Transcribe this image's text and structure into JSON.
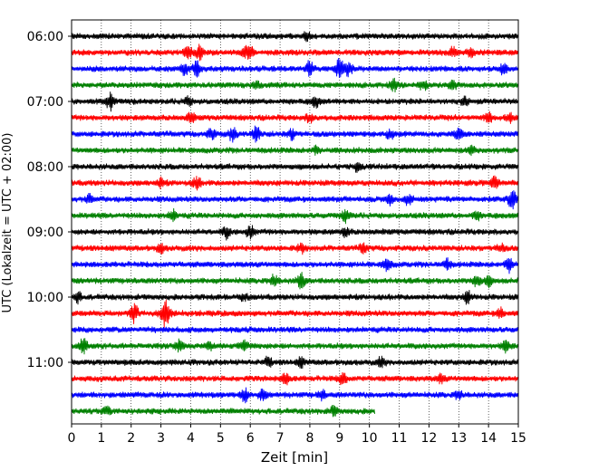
{
  "chart_data": {
    "type": "line",
    "xlabel": "Zeit  [min]",
    "ylabel": "UTC (Lokalzeit = UTC + 02:00)",
    "xlim": [
      0,
      15
    ],
    "x_ticks": [
      0,
      1,
      2,
      3,
      4,
      5,
      6,
      7,
      8,
      9,
      10,
      11,
      12,
      13,
      14,
      15
    ],
    "grid": "vertical dotted",
    "y_ticks": [
      "06:00",
      "07:00",
      "08:00",
      "09:00",
      "10:00",
      "11:00"
    ],
    "trace_interval_minutes": 15,
    "color_cycle": [
      "#000000",
      "#ff0000",
      "#0000ff",
      "#008000"
    ],
    "traces": [
      {
        "start": "06:00",
        "color": "#000000",
        "end_min": 15,
        "events": [
          [
            7.9,
            1.2
          ]
        ]
      },
      {
        "start": "06:15",
        "color": "#ff0000",
        "end_min": 15,
        "events": [
          [
            3.9,
            2.2
          ],
          [
            4.3,
            2.0
          ],
          [
            5.8,
            1.3
          ],
          [
            6.0,
            1.6
          ],
          [
            12.8,
            1.3
          ],
          [
            13.4,
            1.4
          ]
        ]
      },
      {
        "start": "06:30",
        "color": "#0000ff",
        "end_min": 15,
        "events": [
          [
            3.8,
            2.0
          ],
          [
            4.2,
            2.2
          ],
          [
            8.0,
            2.2
          ],
          [
            9.0,
            3.0
          ],
          [
            9.3,
            2.2
          ],
          [
            14.5,
            1.4
          ]
        ]
      },
      {
        "start": "06:45",
        "color": "#008000",
        "end_min": 15,
        "events": [
          [
            6.2,
            1.4
          ],
          [
            10.8,
            1.8
          ],
          [
            11.8,
            1.4
          ],
          [
            12.8,
            1.5
          ]
        ]
      },
      {
        "start": "07:00",
        "color": "#000000",
        "end_min": 15,
        "events": [
          [
            1.3,
            2.4
          ],
          [
            3.9,
            1.3
          ],
          [
            8.2,
            1.6
          ],
          [
            13.2,
            1.4
          ]
        ]
      },
      {
        "start": "07:15",
        "color": "#ff0000",
        "end_min": 15,
        "events": [
          [
            4.0,
            1.5
          ],
          [
            8.0,
            1.3
          ],
          [
            14.0,
            1.4
          ],
          [
            14.7,
            1.3
          ]
        ]
      },
      {
        "start": "07:30",
        "color": "#0000ff",
        "end_min": 15,
        "events": [
          [
            4.7,
            1.8
          ],
          [
            5.4,
            2.0
          ],
          [
            6.2,
            2.2
          ],
          [
            7.4,
            1.5
          ],
          [
            10.7,
            1.4
          ],
          [
            13.0,
            1.6
          ]
        ]
      },
      {
        "start": "07:45",
        "color": "#008000",
        "end_min": 15,
        "events": [
          [
            8.2,
            1.1
          ],
          [
            13.4,
            1.2
          ]
        ]
      },
      {
        "start": "08:00",
        "color": "#000000",
        "end_min": 15,
        "events": [
          [
            9.6,
            1.2
          ]
        ]
      },
      {
        "start": "08:15",
        "color": "#ff0000",
        "end_min": 15,
        "events": [
          [
            3.0,
            1.3
          ],
          [
            4.2,
            1.8
          ],
          [
            14.2,
            1.6
          ]
        ]
      },
      {
        "start": "08:30",
        "color": "#0000ff",
        "end_min": 15,
        "events": [
          [
            0.6,
            1.2
          ],
          [
            10.7,
            1.8
          ],
          [
            11.3,
            1.4
          ],
          [
            14.8,
            3.0
          ]
        ]
      },
      {
        "start": "08:45",
        "color": "#008000",
        "end_min": 15,
        "events": [
          [
            3.4,
            1.5
          ],
          [
            9.2,
            1.8
          ],
          [
            13.6,
            1.2
          ]
        ]
      },
      {
        "start": "09:00",
        "color": "#000000",
        "end_min": 15,
        "events": [
          [
            5.2,
            1.8
          ],
          [
            6.0,
            2.0
          ],
          [
            9.2,
            1.3
          ]
        ]
      },
      {
        "start": "09:15",
        "color": "#ff0000",
        "end_min": 15,
        "events": [
          [
            3.0,
            1.4
          ],
          [
            7.7,
            1.3
          ],
          [
            9.8,
            1.3
          ],
          [
            14.4,
            1.2
          ]
        ]
      },
      {
        "start": "09:30",
        "color": "#0000ff",
        "end_min": 15,
        "events": [
          [
            10.6,
            1.8
          ],
          [
            12.6,
            1.5
          ],
          [
            14.7,
            2.4
          ]
        ]
      },
      {
        "start": "09:45",
        "color": "#008000",
        "end_min": 15,
        "events": [
          [
            6.8,
            1.8
          ],
          [
            7.7,
            2.6
          ],
          [
            13.6,
            1.8
          ],
          [
            14.0,
            1.4
          ]
        ]
      },
      {
        "start": "10:00",
        "color": "#000000",
        "end_min": 15,
        "events": [
          [
            0.2,
            1.6
          ],
          [
            5.8,
            1.2
          ],
          [
            13.3,
            1.8
          ]
        ]
      },
      {
        "start": "10:15",
        "color": "#ff0000",
        "end_min": 15,
        "events": [
          [
            2.1,
            2.8
          ],
          [
            3.1,
            3.4
          ],
          [
            3.2,
            2.4
          ],
          [
            14.4,
            1.4
          ]
        ]
      },
      {
        "start": "10:30",
        "color": "#0000ff",
        "end_min": 15,
        "events": []
      },
      {
        "start": "10:45",
        "color": "#008000",
        "end_min": 15,
        "events": [
          [
            0.4,
            2.2
          ],
          [
            3.6,
            1.6
          ],
          [
            4.6,
            1.6
          ],
          [
            5.8,
            1.3
          ],
          [
            14.6,
            1.8
          ]
        ]
      },
      {
        "start": "11:00",
        "color": "#000000",
        "end_min": 15,
        "events": [
          [
            6.6,
            1.4
          ],
          [
            7.7,
            1.3
          ],
          [
            10.4,
            1.3
          ]
        ]
      },
      {
        "start": "11:15",
        "color": "#ff0000",
        "end_min": 15,
        "events": [
          [
            7.2,
            1.8
          ],
          [
            9.1,
            2.0
          ],
          [
            12.4,
            1.2
          ]
        ]
      },
      {
        "start": "11:30",
        "color": "#0000ff",
        "end_min": 15,
        "events": [
          [
            5.8,
            2.4
          ],
          [
            6.4,
            1.6
          ],
          [
            8.4,
            1.3
          ],
          [
            13.0,
            1.3
          ]
        ]
      },
      {
        "start": "11:45",
        "color": "#008000",
        "end_min": 10.2,
        "events": [
          [
            1.2,
            1.2
          ],
          [
            8.8,
            1.4
          ]
        ]
      }
    ]
  }
}
